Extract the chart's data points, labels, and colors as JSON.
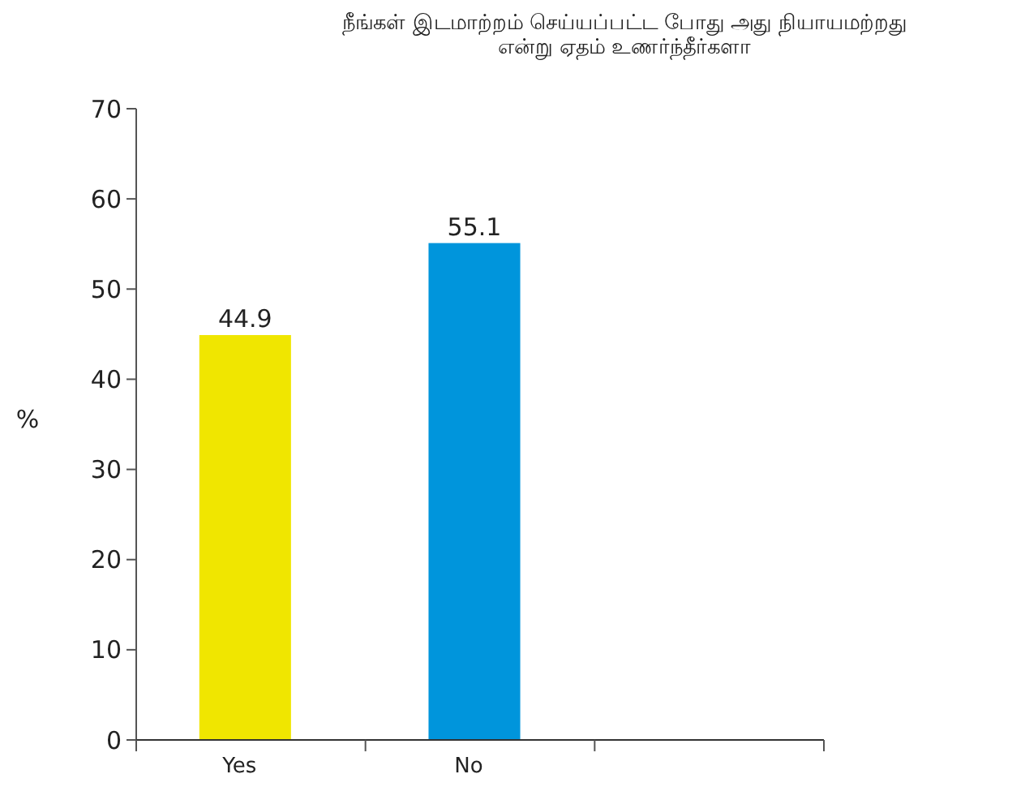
{
  "chart_data": {
    "type": "bar",
    "title": "நீங்கள் இடமாற்றம் செய்யப்பட்ட போது அது நியாயமற்றது\nஎன்று ஏதம் உணர்ந்தீர்களா",
    "ylabel": "%",
    "categories": [
      "Yes",
      "No",
      null
    ],
    "values": [
      44.9,
      55.1,
      null
    ],
    "colors": [
      "#f0e600",
      "#0095dc",
      null
    ],
    "ylim": [
      0,
      70
    ],
    "yticks": [
      0,
      10,
      20,
      30,
      40,
      50,
      60,
      70
    ],
    "data_labels": true,
    "grid": false
  }
}
